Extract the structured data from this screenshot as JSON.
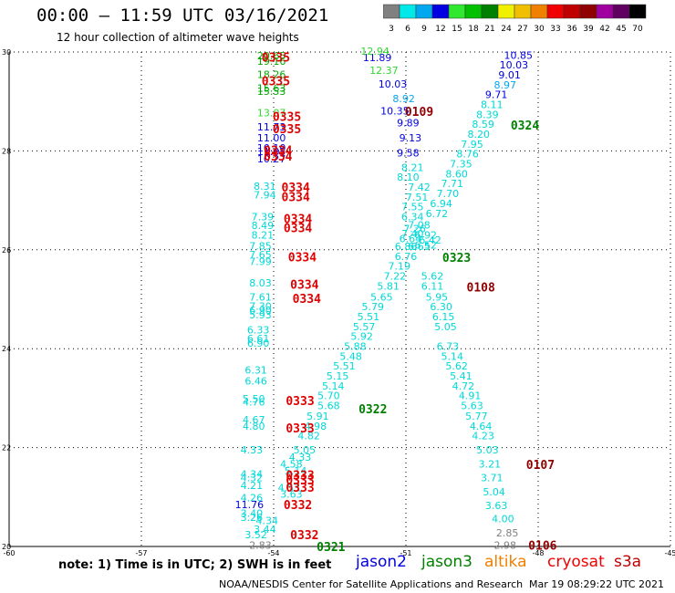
{
  "header": {
    "title": "00:00 – 11:59 UTC 03/16/2021",
    "subtitle": "12 hour collection of altimeter wave heights"
  },
  "legend": {
    "unit": "(ft)",
    "bins": [
      {
        "label": "3",
        "color": "#808080"
      },
      {
        "label": "6",
        "color": "#00e8e8"
      },
      {
        "label": "9",
        "color": "#00a8f0"
      },
      {
        "label": "12",
        "color": "#0000e0"
      },
      {
        "label": "15",
        "color": "#30e830"
      },
      {
        "label": "18",
        "color": "#00c000"
      },
      {
        "label": "21",
        "color": "#008000"
      },
      {
        "label": "24",
        "color": "#f0f000"
      },
      {
        "label": "27",
        "color": "#f0c000"
      },
      {
        "label": "30",
        "color": "#f08000"
      },
      {
        "label": "33",
        "color": "#f00000"
      },
      {
        "label": "36",
        "color": "#c00000"
      },
      {
        "label": "39",
        "color": "#900000"
      },
      {
        "label": "42",
        "color": "#a000a0"
      },
      {
        "label": "45",
        "color": "#600060"
      },
      {
        "label": "70",
        "color": "#000000"
      }
    ]
  },
  "footer": {
    "note": "note:  1) Time is in UTC; 2) SWH is in feet",
    "satellites": [
      {
        "name": "jason2",
        "color": "#0000e0"
      },
      {
        "name": "jason3",
        "color": "#008000"
      },
      {
        "name": "altika",
        "color": "#f08000"
      },
      {
        "name": "cryosat",
        "color": "#f00000"
      },
      {
        "name": "s3a",
        "color": "#c00000"
      }
    ],
    "credit": "NOAA/NESDIS Center for Satellite Applications and Research",
    "timestamp": "Mar 19 08:29:22 UTC 2021"
  },
  "chart_data": {
    "type": "scatter",
    "xlim": [
      -60,
      -45
    ],
    "ylim": [
      20,
      30
    ],
    "x_ticks": [
      "-60",
      "-57",
      "-54",
      "-51",
      "-48",
      "-45"
    ],
    "y_ticks": [
      "20",
      "22",
      "24",
      "26",
      "28",
      "30"
    ],
    "grid": true,
    "colors": {
      "gray": "#808080",
      "cyan": "#00d8d8",
      "lightblue": "#00a8f0",
      "blue": "#0000e0",
      "lightgreen": "#30d830",
      "green": "#00a800",
      "darkgreen": "#008000",
      "red": "#e00000",
      "darkred": "#900000"
    },
    "points": [
      {
        "x": -54.05,
        "y": 29.93,
        "v": "20.65",
        "c": "green"
      },
      {
        "x": -54.05,
        "y": 29.82,
        "v": "19.16",
        "c": "green"
      },
      {
        "x": -54.05,
        "y": 29.55,
        "v": "18.26",
        "c": "green"
      },
      {
        "x": -54.05,
        "y": 29.27,
        "v": "15.63",
        "c": "green"
      },
      {
        "x": -54.05,
        "y": 29.21,
        "v": "15.53",
        "c": "green"
      },
      {
        "x": -54.05,
        "y": 28.77,
        "v": "13.07",
        "c": "lightgreen"
      },
      {
        "x": -54.05,
        "y": 28.49,
        "v": "11.73",
        "c": "blue"
      },
      {
        "x": -54.05,
        "y": 28.27,
        "v": "11.00",
        "c": "blue"
      },
      {
        "x": -54.05,
        "y": 28.06,
        "v": "10.10",
        "c": "blue"
      },
      {
        "x": -54.05,
        "y": 27.99,
        "v": "11.05",
        "c": "blue"
      },
      {
        "x": -54.05,
        "y": 27.84,
        "v": "10.27",
        "c": "blue"
      },
      {
        "x": -54.2,
        "y": 27.29,
        "v": "8.31",
        "c": "cyan"
      },
      {
        "x": -54.2,
        "y": 27.11,
        "v": "7.94",
        "c": "cyan"
      },
      {
        "x": -54.25,
        "y": 26.67,
        "v": "7.39",
        "c": "cyan"
      },
      {
        "x": -54.25,
        "y": 26.49,
        "v": "8.49",
        "c": "cyan"
      },
      {
        "x": -54.25,
        "y": 26.3,
        "v": "8.21",
        "c": "cyan"
      },
      {
        "x": -54.3,
        "y": 26.08,
        "v": "7.85",
        "c": "cyan"
      },
      {
        "x": -54.3,
        "y": 25.9,
        "v": "7.65",
        "c": "cyan"
      },
      {
        "x": -54.3,
        "y": 25.77,
        "v": "7.99",
        "c": "cyan"
      },
      {
        "x": -54.3,
        "y": 25.33,
        "v": "8.03",
        "c": "cyan"
      },
      {
        "x": -54.3,
        "y": 25.05,
        "v": "7.61",
        "c": "cyan"
      },
      {
        "x": -54.3,
        "y": 24.86,
        "v": "7.30",
        "c": "cyan"
      },
      {
        "x": -54.3,
        "y": 24.78,
        "v": "6.90",
        "c": "cyan"
      },
      {
        "x": -54.3,
        "y": 24.69,
        "v": "5.93",
        "c": "cyan"
      },
      {
        "x": -54.35,
        "y": 24.38,
        "v": "6.33",
        "c": "cyan"
      },
      {
        "x": -54.35,
        "y": 24.21,
        "v": "6.61",
        "c": "cyan"
      },
      {
        "x": -54.35,
        "y": 24.11,
        "v": "6.90",
        "c": "cyan"
      },
      {
        "x": -54.4,
        "y": 23.57,
        "v": "6.31",
        "c": "cyan"
      },
      {
        "x": -54.4,
        "y": 23.35,
        "v": "6.46",
        "c": "cyan"
      },
      {
        "x": -54.45,
        "y": 22.99,
        "v": "5.50",
        "c": "cyan"
      },
      {
        "x": -54.45,
        "y": 22.92,
        "v": "4.76",
        "c": "cyan"
      },
      {
        "x": -54.45,
        "y": 22.56,
        "v": "4.67",
        "c": "cyan"
      },
      {
        "x": -54.45,
        "y": 22.44,
        "v": "4.80",
        "c": "cyan"
      },
      {
        "x": -54.5,
        "y": 21.96,
        "v": "4.33",
        "c": "cyan"
      },
      {
        "x": -54.5,
        "y": 21.47,
        "v": "4.34",
        "c": "cyan"
      },
      {
        "x": -54.5,
        "y": 21.39,
        "v": "4.32",
        "c": "cyan"
      },
      {
        "x": -54.5,
        "y": 21.24,
        "v": "4.21",
        "c": "cyan"
      },
      {
        "x": -54.5,
        "y": 20.99,
        "v": "4.26",
        "c": "cyan"
      },
      {
        "x": -54.55,
        "y": 20.85,
        "v": "11.76",
        "c": "blue"
      },
      {
        "x": -54.5,
        "y": 20.67,
        "v": "3.40",
        "c": "cyan"
      },
      {
        "x": -54.5,
        "y": 20.59,
        "v": "3.26",
        "c": "cyan"
      },
      {
        "x": -54.15,
        "y": 20.53,
        "v": "4.34",
        "c": "cyan"
      },
      {
        "x": -54.2,
        "y": 20.35,
        "v": "3.44",
        "c": "cyan"
      },
      {
        "x": -54.4,
        "y": 20.24,
        "v": "3.52",
        "c": "cyan"
      },
      {
        "x": -54.3,
        "y": 20.03,
        "v": "2.83",
        "c": "gray"
      },
      {
        "x": -53.6,
        "y": 21.67,
        "v": "4.58",
        "c": "cyan"
      },
      {
        "x": -53.5,
        "y": 21.53,
        "v": "5.14",
        "c": "cyan"
      },
      {
        "x": -53.65,
        "y": 21.19,
        "v": "4.53",
        "c": "cyan"
      },
      {
        "x": -53.6,
        "y": 21.06,
        "v": "3.63",
        "c": "cyan"
      },
      {
        "x": -53.4,
        "y": 21.81,
        "v": "4.33",
        "c": "cyan"
      },
      {
        "x": -53.3,
        "y": 21.96,
        "v": "5.05",
        "c": "cyan"
      },
      {
        "x": -53.2,
        "y": 22.24,
        "v": "4.82",
        "c": "cyan"
      },
      {
        "x": -53.05,
        "y": 22.44,
        "v": "4.98",
        "c": "cyan"
      },
      {
        "x": -53.0,
        "y": 22.64,
        "v": "5.91",
        "c": "cyan"
      },
      {
        "x": -52.75,
        "y": 22.85,
        "v": "5.68",
        "c": "cyan"
      },
      {
        "x": -52.75,
        "y": 23.05,
        "v": "5.70",
        "c": "cyan"
      },
      {
        "x": -52.65,
        "y": 23.25,
        "v": "5.14",
        "c": "cyan"
      },
      {
        "x": -52.55,
        "y": 23.45,
        "v": "5.15",
        "c": "cyan"
      },
      {
        "x": -52.4,
        "y": 23.65,
        "v": "5.51",
        "c": "cyan"
      },
      {
        "x": -52.25,
        "y": 23.85,
        "v": "5.48",
        "c": "cyan"
      },
      {
        "x": -52.15,
        "y": 24.05,
        "v": "5.88",
        "c": "cyan"
      },
      {
        "x": -52.0,
        "y": 24.25,
        "v": "5.92",
        "c": "cyan"
      },
      {
        "x": -51.95,
        "y": 24.45,
        "v": "5.57",
        "c": "cyan"
      },
      {
        "x": -51.85,
        "y": 24.65,
        "v": "5.51",
        "c": "cyan"
      },
      {
        "x": -51.75,
        "y": 24.85,
        "v": "5.79",
        "c": "cyan"
      },
      {
        "x": -51.55,
        "y": 25.05,
        "v": "5.65",
        "c": "cyan"
      },
      {
        "x": -51.4,
        "y": 25.27,
        "v": "5.81",
        "c": "cyan"
      },
      {
        "x": -51.25,
        "y": 25.47,
        "v": "7.22",
        "c": "cyan"
      },
      {
        "x": -51.15,
        "y": 25.67,
        "v": "7.19",
        "c": "cyan"
      },
      {
        "x": -51.0,
        "y": 25.87,
        "v": "6.76",
        "c": "cyan"
      },
      {
        "x": -51.0,
        "y": 26.07,
        "v": "6.86",
        "c": "cyan"
      },
      {
        "x": -50.7,
        "y": 26.07,
        "v": "6.65",
        "c": "cyan"
      },
      {
        "x": -50.9,
        "y": 26.23,
        "v": "6.64",
        "c": "cyan"
      },
      {
        "x": -50.85,
        "y": 26.33,
        "v": "7.40",
        "c": "cyan"
      },
      {
        "x": -50.8,
        "y": 26.43,
        "v": "7.26",
        "c": "cyan"
      },
      {
        "x": -50.7,
        "y": 26.5,
        "v": "7.08",
        "c": "cyan"
      },
      {
        "x": -50.85,
        "y": 26.67,
        "v": "6.34",
        "c": "cyan"
      },
      {
        "x": -50.85,
        "y": 26.87,
        "v": "7.55",
        "c": "cyan"
      },
      {
        "x": -50.75,
        "y": 27.07,
        "v": "7.51",
        "c": "cyan"
      },
      {
        "x": -50.7,
        "y": 27.27,
        "v": "7.42",
        "c": "cyan"
      },
      {
        "x": -50.95,
        "y": 27.47,
        "v": "8.10",
        "c": "cyan"
      },
      {
        "x": -50.85,
        "y": 27.67,
        "v": "8.21",
        "c": "cyan"
      },
      {
        "x": -50.95,
        "y": 27.96,
        "v": "9.58",
        "c": "blue"
      },
      {
        "x": -50.9,
        "y": 28.27,
        "v": "9.13",
        "c": "blue"
      },
      {
        "x": -50.95,
        "y": 28.57,
        "v": "9.89",
        "c": "blue"
      },
      {
        "x": -51.25,
        "y": 28.81,
        "v": "10.35",
        "c": "blue"
      },
      {
        "x": -51.05,
        "y": 29.06,
        "v": "8.92",
        "c": "lightblue"
      },
      {
        "x": -51.3,
        "y": 29.35,
        "v": "10.03",
        "c": "blue"
      },
      {
        "x": -51.5,
        "y": 29.63,
        "v": "12.37",
        "c": "lightgreen"
      },
      {
        "x": -51.65,
        "y": 29.89,
        "v": "11.89",
        "c": "blue"
      },
      {
        "x": -51.7,
        "y": 30.02,
        "v": "12.94",
        "c": "lightgreen"
      },
      {
        "x": -50.45,
        "y": 26.2,
        "v": "6.42",
        "c": "cyan"
      },
      {
        "x": -50.55,
        "y": 26.3,
        "v": "6.92",
        "c": "cyan"
      },
      {
        "x": -50.55,
        "y": 26.1,
        "v": "6.52",
        "c": "cyan"
      },
      {
        "x": -50.3,
        "y": 26.73,
        "v": "6.72",
        "c": "cyan"
      },
      {
        "x": -50.2,
        "y": 26.94,
        "v": "6.94",
        "c": "cyan"
      },
      {
        "x": -50.05,
        "y": 27.14,
        "v": "7.70",
        "c": "cyan"
      },
      {
        "x": -49.95,
        "y": 27.34,
        "v": "7.71",
        "c": "cyan"
      },
      {
        "x": -49.85,
        "y": 27.54,
        "v": "8.60",
        "c": "cyan"
      },
      {
        "x": -49.75,
        "y": 27.74,
        "v": "7.35",
        "c": "cyan"
      },
      {
        "x": -49.6,
        "y": 27.94,
        "v": "8.76",
        "c": "cyan"
      },
      {
        "x": -49.5,
        "y": 28.14,
        "v": "7.95",
        "c": "cyan"
      },
      {
        "x": -49.35,
        "y": 28.34,
        "v": "8.20",
        "c": "cyan"
      },
      {
        "x": -49.25,
        "y": 28.54,
        "v": "8.59",
        "c": "cyan"
      },
      {
        "x": -49.15,
        "y": 28.74,
        "v": "8.39",
        "c": "cyan"
      },
      {
        "x": -49.05,
        "y": 28.94,
        "v": "8.11",
        "c": "cyan"
      },
      {
        "x": -48.95,
        "y": 29.14,
        "v": "9.71",
        "c": "blue"
      },
      {
        "x": -48.75,
        "y": 29.34,
        "v": "8.97",
        "c": "lightblue"
      },
      {
        "x": -48.65,
        "y": 29.54,
        "v": "9.01",
        "c": "blue"
      },
      {
        "x": -48.55,
        "y": 29.74,
        "v": "10.03",
        "c": "blue"
      },
      {
        "x": -48.45,
        "y": 29.94,
        "v": "10.85",
        "c": "blue"
      },
      {
        "x": -50.4,
        "y": 25.47,
        "v": "5.62",
        "c": "cyan"
      },
      {
        "x": -50.4,
        "y": 25.27,
        "v": "6.11",
        "c": "cyan"
      },
      {
        "x": -50.3,
        "y": 25.05,
        "v": "5.95",
        "c": "cyan"
      },
      {
        "x": -50.2,
        "y": 24.85,
        "v": "6.30",
        "c": "cyan"
      },
      {
        "x": -50.15,
        "y": 24.65,
        "v": "6.15",
        "c": "cyan"
      },
      {
        "x": -50.1,
        "y": 24.45,
        "v": "5.05",
        "c": "cyan"
      },
      {
        "x": -50.05,
        "y": 24.05,
        "v": "6.73",
        "c": "cyan"
      },
      {
        "x": -49.95,
        "y": 23.85,
        "v": "5.14",
        "c": "cyan"
      },
      {
        "x": -49.85,
        "y": 23.65,
        "v": "5.62",
        "c": "cyan"
      },
      {
        "x": -49.75,
        "y": 23.45,
        "v": "5.41",
        "c": "cyan"
      },
      {
        "x": -49.7,
        "y": 23.25,
        "v": "4.72",
        "c": "cyan"
      },
      {
        "x": -49.55,
        "y": 23.05,
        "v": "4.91",
        "c": "cyan"
      },
      {
        "x": -49.5,
        "y": 22.85,
        "v": "5.63",
        "c": "cyan"
      },
      {
        "x": -49.4,
        "y": 22.64,
        "v": "5.77",
        "c": "cyan"
      },
      {
        "x": -49.3,
        "y": 22.44,
        "v": "4.64",
        "c": "cyan"
      },
      {
        "x": -49.25,
        "y": 22.24,
        "v": "4.23",
        "c": "cyan"
      },
      {
        "x": -49.15,
        "y": 21.96,
        "v": "5.03",
        "c": "cyan"
      },
      {
        "x": -49.1,
        "y": 21.67,
        "v": "3.21",
        "c": "cyan"
      },
      {
        "x": -49.05,
        "y": 21.39,
        "v": "3.71",
        "c": "cyan"
      },
      {
        "x": -49.0,
        "y": 21.11,
        "v": "5.04",
        "c": "cyan"
      },
      {
        "x": -48.95,
        "y": 20.83,
        "v": "3.63",
        "c": "cyan"
      },
      {
        "x": -48.8,
        "y": 20.56,
        "v": "4.00",
        "c": "cyan"
      },
      {
        "x": -48.7,
        "y": 20.28,
        "v": "2.85",
        "c": "gray"
      },
      {
        "x": -48.75,
        "y": 20.03,
        "v": "2.98",
        "c": "gray"
      }
    ],
    "passes": [
      {
        "x": -53.95,
        "y": 29.9,
        "label": "0335",
        "c": "red"
      },
      {
        "x": -53.95,
        "y": 29.42,
        "label": "0335",
        "c": "red"
      },
      {
        "x": -53.7,
        "y": 28.7,
        "label": "0335",
        "c": "red"
      },
      {
        "x": -53.7,
        "y": 28.45,
        "label": "0335",
        "c": "red"
      },
      {
        "x": -53.9,
        "y": 28.02,
        "label": "0334",
        "c": "red"
      },
      {
        "x": -53.9,
        "y": 27.9,
        "label": "0334",
        "c": "red"
      },
      {
        "x": -53.5,
        "y": 27.27,
        "label": "0334",
        "c": "red"
      },
      {
        "x": -53.5,
        "y": 27.08,
        "label": "0334",
        "c": "red"
      },
      {
        "x": -53.45,
        "y": 26.63,
        "label": "0334",
        "c": "red"
      },
      {
        "x": -53.45,
        "y": 26.45,
        "label": "0334",
        "c": "red"
      },
      {
        "x": -53.35,
        "y": 25.86,
        "label": "0334",
        "c": "red"
      },
      {
        "x": -53.3,
        "y": 25.3,
        "label": "0334",
        "c": "red"
      },
      {
        "x": -53.25,
        "y": 25.02,
        "label": "0334",
        "c": "red"
      },
      {
        "x": -53.4,
        "y": 22.95,
        "label": "0333",
        "c": "red"
      },
      {
        "x": -53.4,
        "y": 22.4,
        "label": "0333",
        "c": "red"
      },
      {
        "x": -53.4,
        "y": 21.45,
        "label": "0333",
        "c": "red"
      },
      {
        "x": -53.4,
        "y": 21.35,
        "label": "0333",
        "c": "red"
      },
      {
        "x": -53.4,
        "y": 21.2,
        "label": "0333",
        "c": "red"
      },
      {
        "x": -53.45,
        "y": 20.85,
        "label": "0332",
        "c": "red"
      },
      {
        "x": -53.3,
        "y": 20.24,
        "label": "0332",
        "c": "red"
      },
      {
        "x": -52.7,
        "y": 20.0,
        "label": "0321",
        "c": "darkgreen"
      },
      {
        "x": -51.75,
        "y": 22.79,
        "label": "0322",
        "c": "darkgreen"
      },
      {
        "x": -49.85,
        "y": 25.85,
        "label": "0323",
        "c": "darkgreen"
      },
      {
        "x": -48.3,
        "y": 28.52,
        "label": "0324",
        "c": "darkgreen"
      },
      {
        "x": -50.7,
        "y": 28.8,
        "label": "0109",
        "c": "darkred"
      },
      {
        "x": -49.3,
        "y": 25.25,
        "label": "0108",
        "c": "darkred"
      },
      {
        "x": -47.95,
        "y": 21.66,
        "label": "0107",
        "c": "darkred"
      },
      {
        "x": -47.9,
        "y": 20.03,
        "label": "0106",
        "c": "darkred"
      }
    ]
  }
}
